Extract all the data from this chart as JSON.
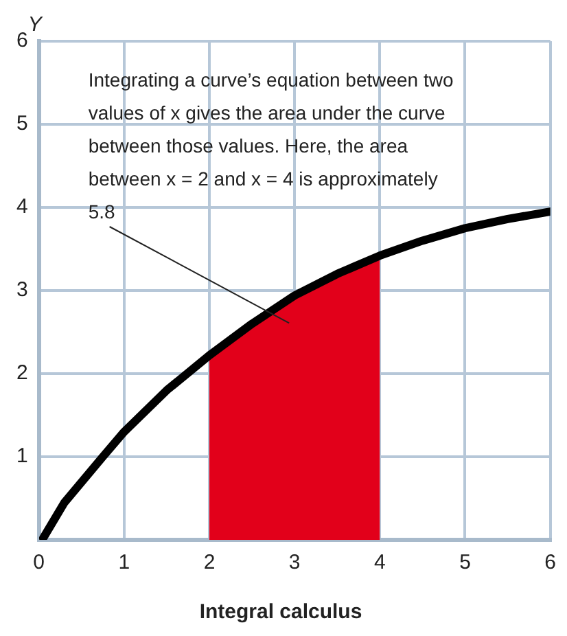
{
  "chart_data": {
    "type": "line",
    "title": "Integral calculus",
    "ylabel": "Y",
    "series": [
      {
        "type": "area",
        "color": "#e2001a",
        "x": [
          2,
          2.5,
          3,
          3.5,
          4
        ],
        "values": [
          2.22,
          2.6,
          2.94,
          3.2,
          3.42
        ]
      },
      {
        "type": "line",
        "color": "#000000",
        "x": [
          0.05,
          0.3,
          0.75,
          1,
          1.5,
          2,
          2.5,
          3,
          3.5,
          4,
          4.5,
          5,
          5.5,
          6
        ],
        "values": [
          0.02,
          0.45,
          1.0,
          1.3,
          1.8,
          2.22,
          2.6,
          2.94,
          3.2,
          3.42,
          3.6,
          3.75,
          3.86,
          3.95
        ]
      }
    ],
    "xlim": [
      0,
      6
    ],
    "xticks": [
      0,
      1,
      2,
      3,
      4,
      5,
      6
    ],
    "ylim": [
      0,
      6
    ],
    "yticks": [
      {
        "value": 0,
        "label": null
      },
      1,
      2,
      3,
      4,
      5,
      6
    ],
    "grid": true,
    "legend": false,
    "marker": "none",
    "line_style": "solid",
    "annotations": [
      "Integrating a curve’s equation between two values of x gives the area under the curve between those values. Here, the area between x = 2 and x = 4 is approximately 5.8"
    ]
  }
}
